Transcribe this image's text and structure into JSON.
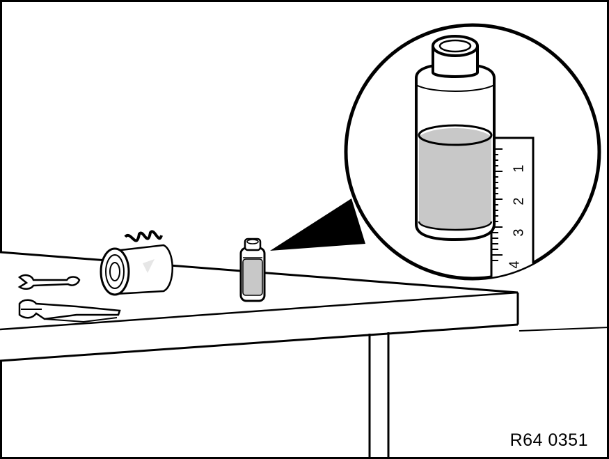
{
  "figure": {
    "reference_code": "R64 0351",
    "scale_numbers": [
      "1",
      "2",
      "3",
      "4"
    ]
  },
  "icons": {
    "wrench": "wrench-icon",
    "pliers": "pliers-icon",
    "compressor": "compressor-icon",
    "container": "oil-container-icon"
  },
  "colors": {
    "ink": "#000000",
    "paper": "#ffffff",
    "oil_fill": "#c8c8c8",
    "highlight": "#e6e6e6"
  }
}
